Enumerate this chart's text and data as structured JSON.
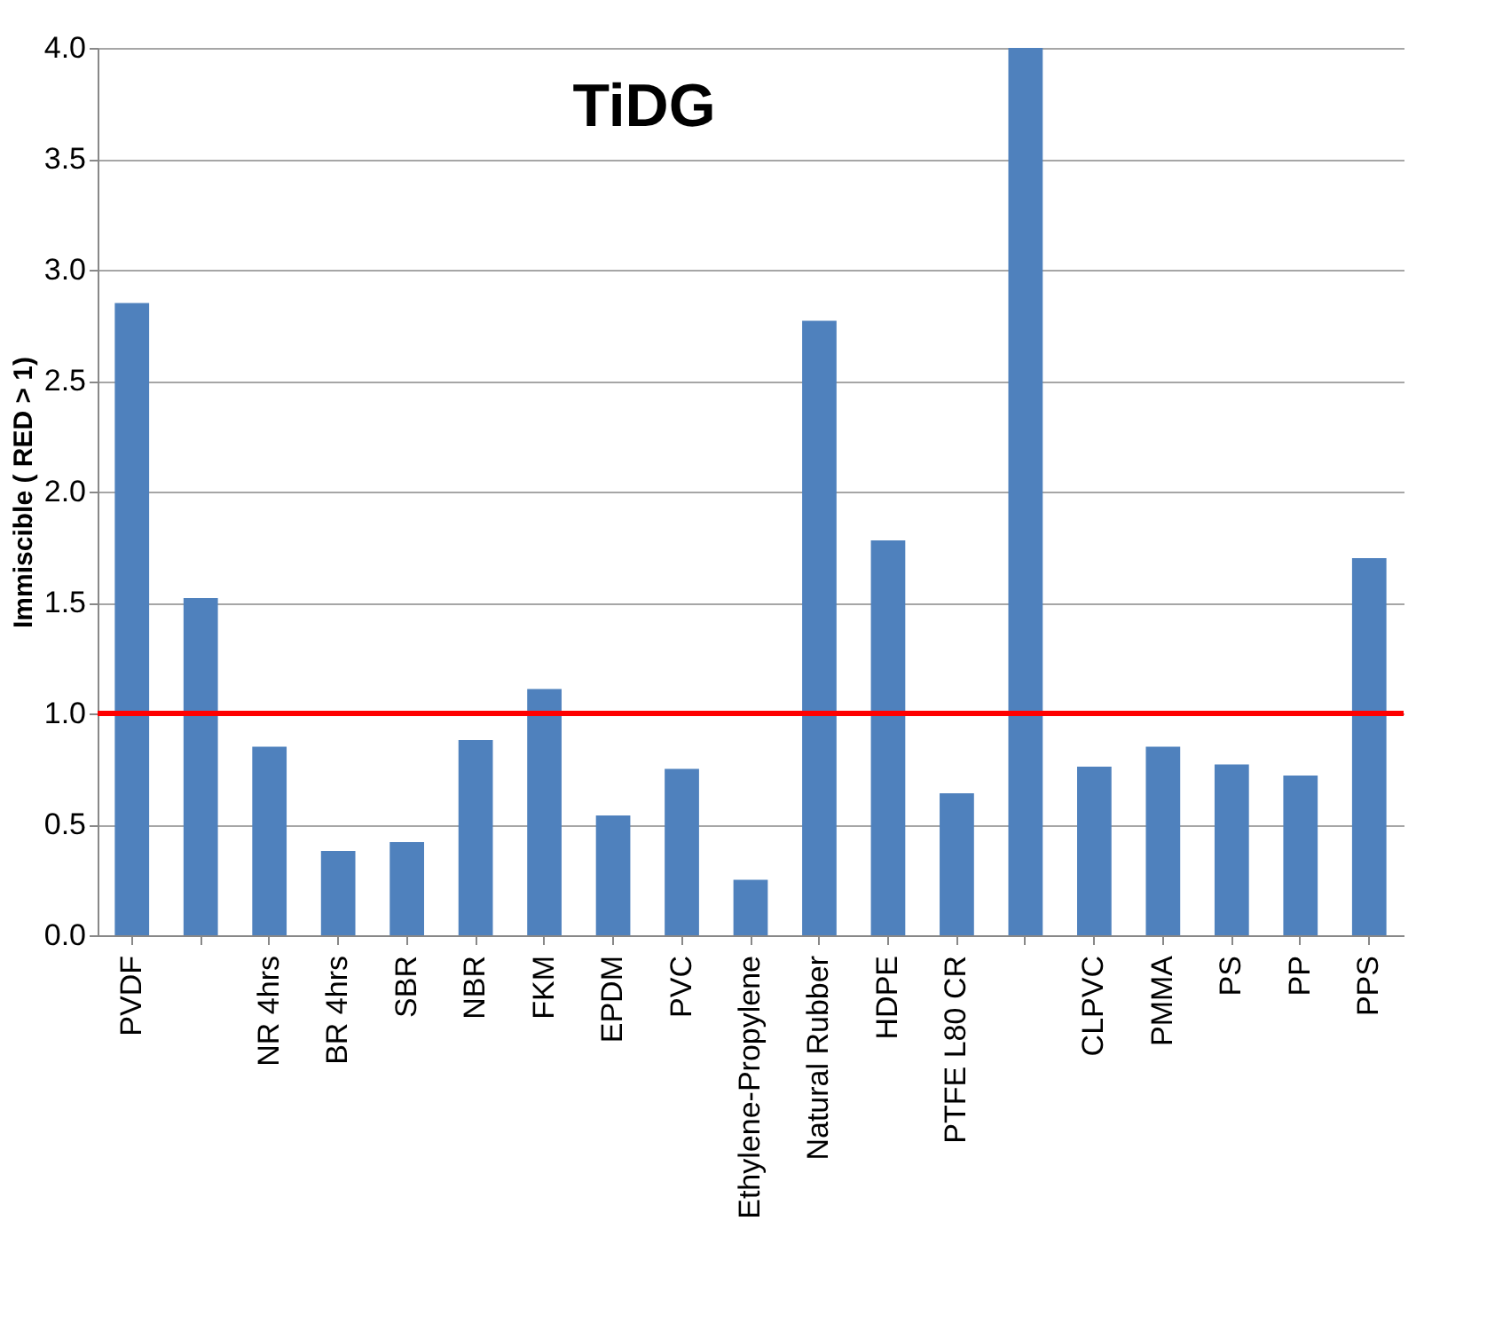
{
  "chart_data": {
    "type": "bar",
    "title": "TiDG",
    "ylabel": "Immiscible ( RED > 1)",
    "categories": [
      "PVDF",
      null,
      "NR 4hrs",
      "BR 4hrs",
      "SBR",
      "NBR",
      "FKM",
      "EPDM",
      "PVC",
      "Ethylene-Propylene",
      "Natural Rubber",
      "HDPE",
      "PTFE L80 CR",
      null,
      "CLPVC",
      "PMMA",
      "PS",
      "PP",
      "PPS"
    ],
    "values": [
      2.85,
      1.52,
      0.85,
      0.38,
      0.42,
      0.88,
      1.11,
      0.54,
      0.75,
      0.25,
      2.77,
      1.78,
      0.64,
      4.0,
      0.76,
      0.85,
      0.77,
      0.72,
      1.7
    ],
    "color": "#4f81bd",
    "ylim": [
      0,
      4
    ],
    "yticks": [
      {
        "value": 0,
        "label": "0.0"
      },
      {
        "value": 0.5,
        "label": "0.5"
      },
      {
        "value": 1,
        "label": "1.0"
      },
      {
        "value": 1.5,
        "label": "1.5"
      },
      {
        "value": 2,
        "label": "2.0"
      },
      {
        "value": 2.5,
        "label": "2.5"
      },
      {
        "value": 3,
        "label": "3.0"
      },
      {
        "value": 3.5,
        "label": "3.5"
      },
      {
        "value": 4,
        "label": "4.0"
      }
    ],
    "grid": "y",
    "ref_lines": [
      {
        "axis": "y",
        "value": 1,
        "color": "#ff0000"
      }
    ]
  }
}
